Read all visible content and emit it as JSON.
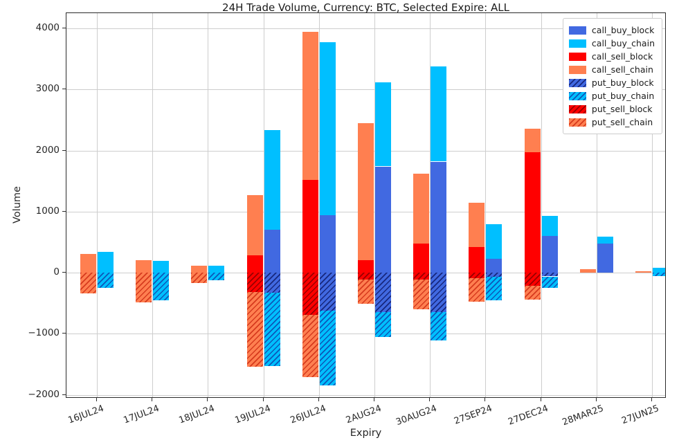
{
  "chart_data": {
    "type": "bar",
    "stacked": true,
    "title": "24H Trade Volume, Currency: BTC, Selected Expire: ALL",
    "xlabel": "Expiry",
    "ylabel": "Volume",
    "categories": [
      "16JUL24",
      "17JUL24",
      "18JUL24",
      "19JUL24",
      "26JUL24",
      "2AUG24",
      "30AUG24",
      "27SEP24",
      "27DEC24",
      "28MAR25",
      "27JUN25"
    ],
    "yticks": [
      -2000,
      -1000,
      0,
      1000,
      2000,
      3000,
      4000
    ],
    "ylim": [
      -2060,
      4250
    ],
    "grid": true,
    "legend_position": "upper right",
    "colors": {
      "call_block_buy": "#4169E1",
      "chain_buy": "#00BFFF",
      "block_sell": "#FF0000",
      "chain_sell": "#FF7F50"
    },
    "series": [
      {
        "name": "call_buy_block",
        "color": "#4169E1",
        "hatch": false,
        "hatch_color": "",
        "values": [
          0,
          0,
          0,
          700,
          940,
          1740,
          1820,
          230,
          600,
          480,
          0
        ]
      },
      {
        "name": "call_buy_chain",
        "color": "#00BFFF",
        "hatch": false,
        "hatch_color": "",
        "values": [
          340,
          200,
          110,
          1640,
          2830,
          1380,
          1560,
          570,
          330,
          110,
          80
        ]
      },
      {
        "name": "call_sell_block",
        "color": "#FF0000",
        "hatch": false,
        "hatch_color": "",
        "values": [
          0,
          0,
          0,
          280,
          1520,
          210,
          480,
          420,
          1970,
          0,
          0
        ]
      },
      {
        "name": "call_sell_chain",
        "color": "#FF7F50",
        "hatch": false,
        "hatch_color": "",
        "values": [
          310,
          210,
          120,
          990,
          2420,
          2240,
          1140,
          730,
          390,
          60,
          20
        ]
      },
      {
        "name": "put_buy_block",
        "color": "#4169E1",
        "hatch": true,
        "hatch_color": "#17277d",
        "values": [
          0,
          0,
          0,
          -330,
          -620,
          -640,
          -640,
          -70,
          -60,
          0,
          0
        ]
      },
      {
        "name": "put_buy_chain",
        "color": "#00BFFF",
        "hatch": true,
        "hatch_color": "#0d57b8",
        "values": [
          -250,
          -450,
          -120,
          -1200,
          -1230,
          -410,
          -470,
          -380,
          -190,
          0,
          -50
        ]
      },
      {
        "name": "put_sell_block",
        "color": "#FF0000",
        "hatch": true,
        "hatch_color": "#990000",
        "values": [
          0,
          0,
          0,
          -310,
          -690,
          -110,
          -110,
          -90,
          -210,
          0,
          0
        ]
      },
      {
        "name": "put_sell_chain",
        "color": "#FF7F50",
        "hatch": true,
        "hatch_color": "#d63a1e",
        "values": [
          -340,
          -480,
          -170,
          -1230,
          -1020,
          -400,
          -490,
          -390,
          -230,
          0,
          0
        ]
      }
    ],
    "bar_groups": {
      "left_bar_positive": [
        "call_sell_block",
        "call_sell_chain"
      ],
      "left_bar_negative": [
        "put_sell_block",
        "put_sell_chain"
      ],
      "right_bar_positive": [
        "call_buy_block",
        "call_buy_chain"
      ],
      "right_bar_negative": [
        "put_buy_block",
        "put_buy_chain"
      ]
    }
  }
}
